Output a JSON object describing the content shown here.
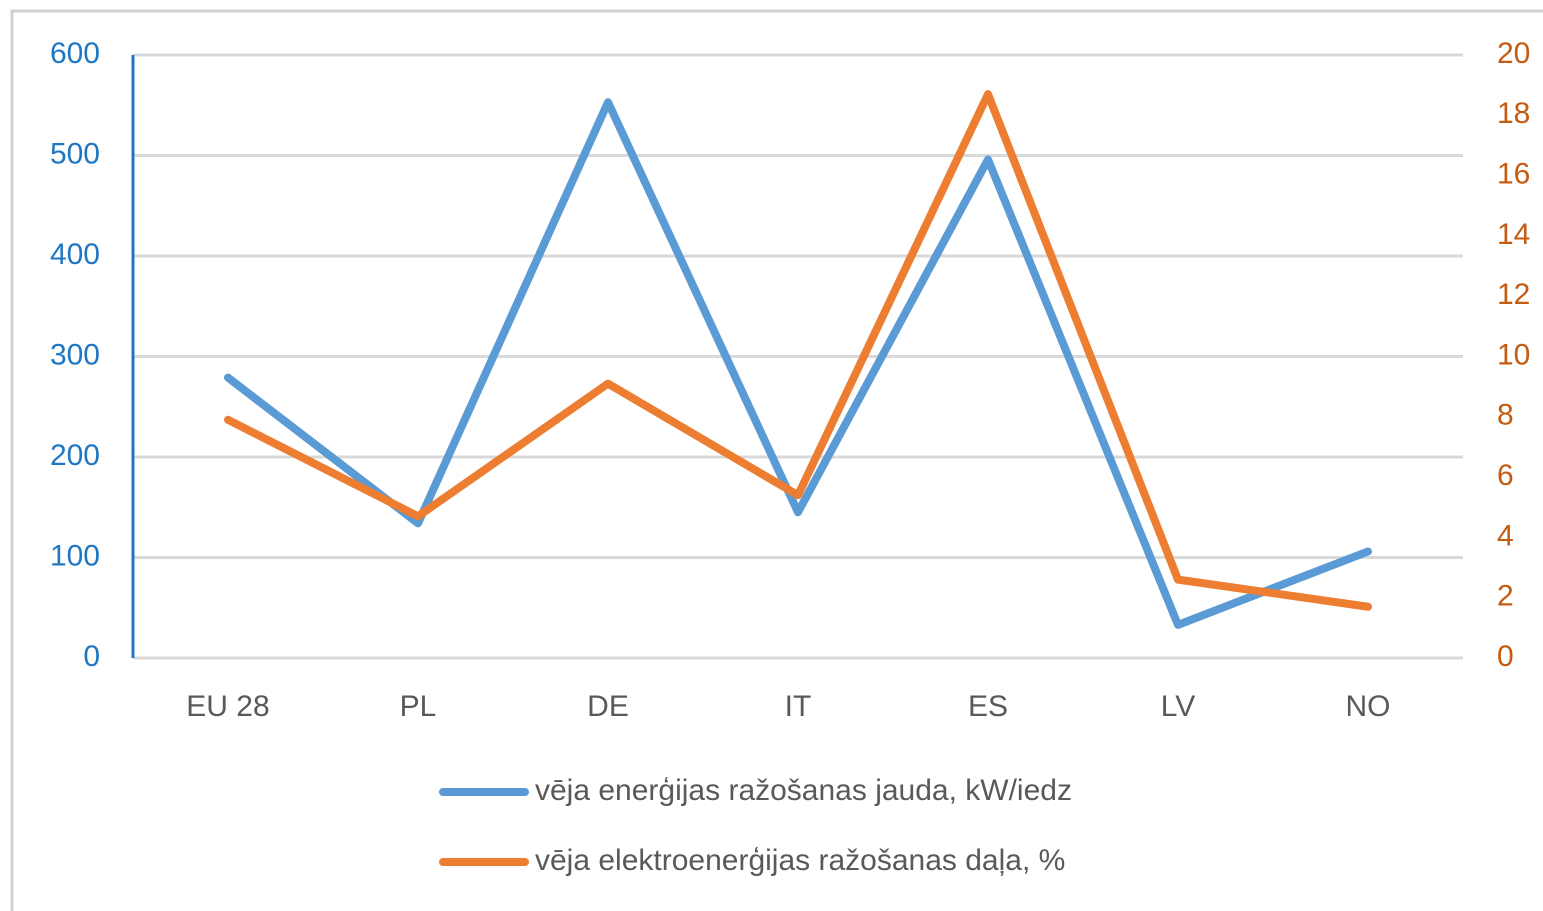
{
  "chart_data": {
    "type": "line",
    "categories": [
      "EU 28",
      "PL",
      "DE",
      "IT",
      "ES",
      "LV",
      "NO"
    ],
    "series": [
      {
        "name": "vēja enerģijas ražošanas jauda, kW/iedz",
        "color": "#5b9bd5",
        "values": [
          279,
          134,
          553,
          145,
          496,
          33,
          106
        ]
      },
      {
        "name": "vēja elektroenerģijas ražošanas daļa, %",
        "color": "#ed7d31",
        "axis": "y2",
        "values": [
          7.9,
          4.7,
          9.1,
          5.4,
          18.7,
          2.6,
          1.7
        ]
      }
    ],
    "ylim": [
      0,
      600
    ],
    "yticks": [
      0,
      100,
      200,
      300,
      400,
      500,
      600
    ],
    "y2lim": [
      0,
      20
    ],
    "y2ticks": [
      0,
      2,
      4,
      6,
      8,
      10,
      12,
      14,
      16,
      18,
      20
    ],
    "ytick_color": "#1f77c4",
    "y2tick_color": "#c55a11",
    "grid": true,
    "legend": "bottom"
  }
}
